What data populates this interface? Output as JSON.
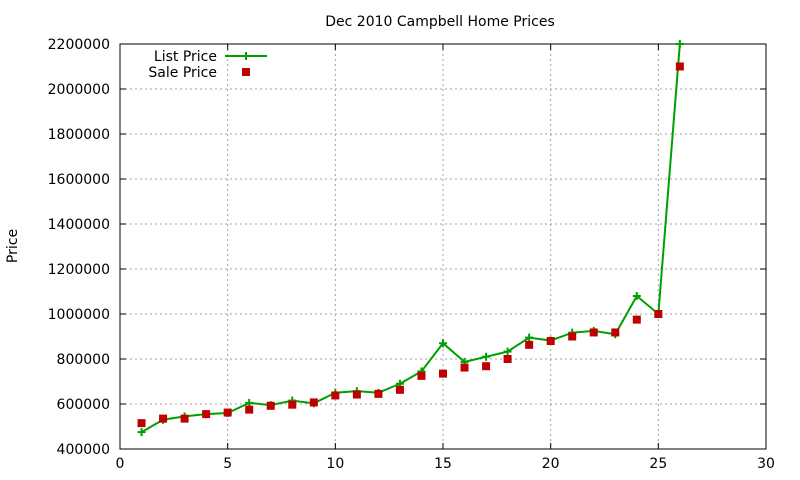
{
  "chart_data": {
    "type": "line",
    "title": "Dec 2010 Campbell Home Prices",
    "xlabel": "",
    "ylabel": "Price",
    "xlim": [
      0,
      30
    ],
    "ylim": [
      400000,
      2200000
    ],
    "x_ticks": [
      0,
      5,
      10,
      15,
      20,
      25,
      30
    ],
    "y_ticks": [
      400000,
      600000,
      800000,
      1000000,
      1200000,
      1400000,
      1600000,
      1800000,
      2000000,
      2200000
    ],
    "grid": true,
    "legend_position": "top-left",
    "series": [
      {
        "name": "List Price",
        "style": "line-plus",
        "color": "#00a000",
        "x": [
          1,
          2,
          3,
          4,
          5,
          6,
          7,
          8,
          9,
          10,
          11,
          12,
          13,
          14,
          15,
          16,
          17,
          18,
          19,
          20,
          21,
          22,
          23,
          24,
          25,
          26
        ],
        "values": [
          475000,
          530000,
          545000,
          555000,
          560000,
          605000,
          595000,
          615000,
          603000,
          650000,
          657000,
          650000,
          690000,
          745000,
          870000,
          787000,
          810000,
          833000,
          895000,
          882000,
          917000,
          925000,
          910000,
          1080000,
          1000000,
          2200000
        ]
      },
      {
        "name": "Sale Price",
        "style": "points-square",
        "color": "#c00000",
        "x": [
          1,
          2,
          3,
          4,
          5,
          6,
          7,
          8,
          9,
          10,
          11,
          12,
          13,
          14,
          15,
          16,
          17,
          18,
          19,
          20,
          21,
          22,
          23,
          24,
          25,
          26
        ],
        "values": [
          515000,
          535000,
          535000,
          555000,
          562000,
          575000,
          592000,
          597000,
          607000,
          638000,
          642000,
          645000,
          663000,
          725000,
          735000,
          762000,
          768000,
          800000,
          863000,
          880000,
          900000,
          918000,
          918000,
          975000,
          1000000,
          2100000
        ]
      }
    ]
  }
}
